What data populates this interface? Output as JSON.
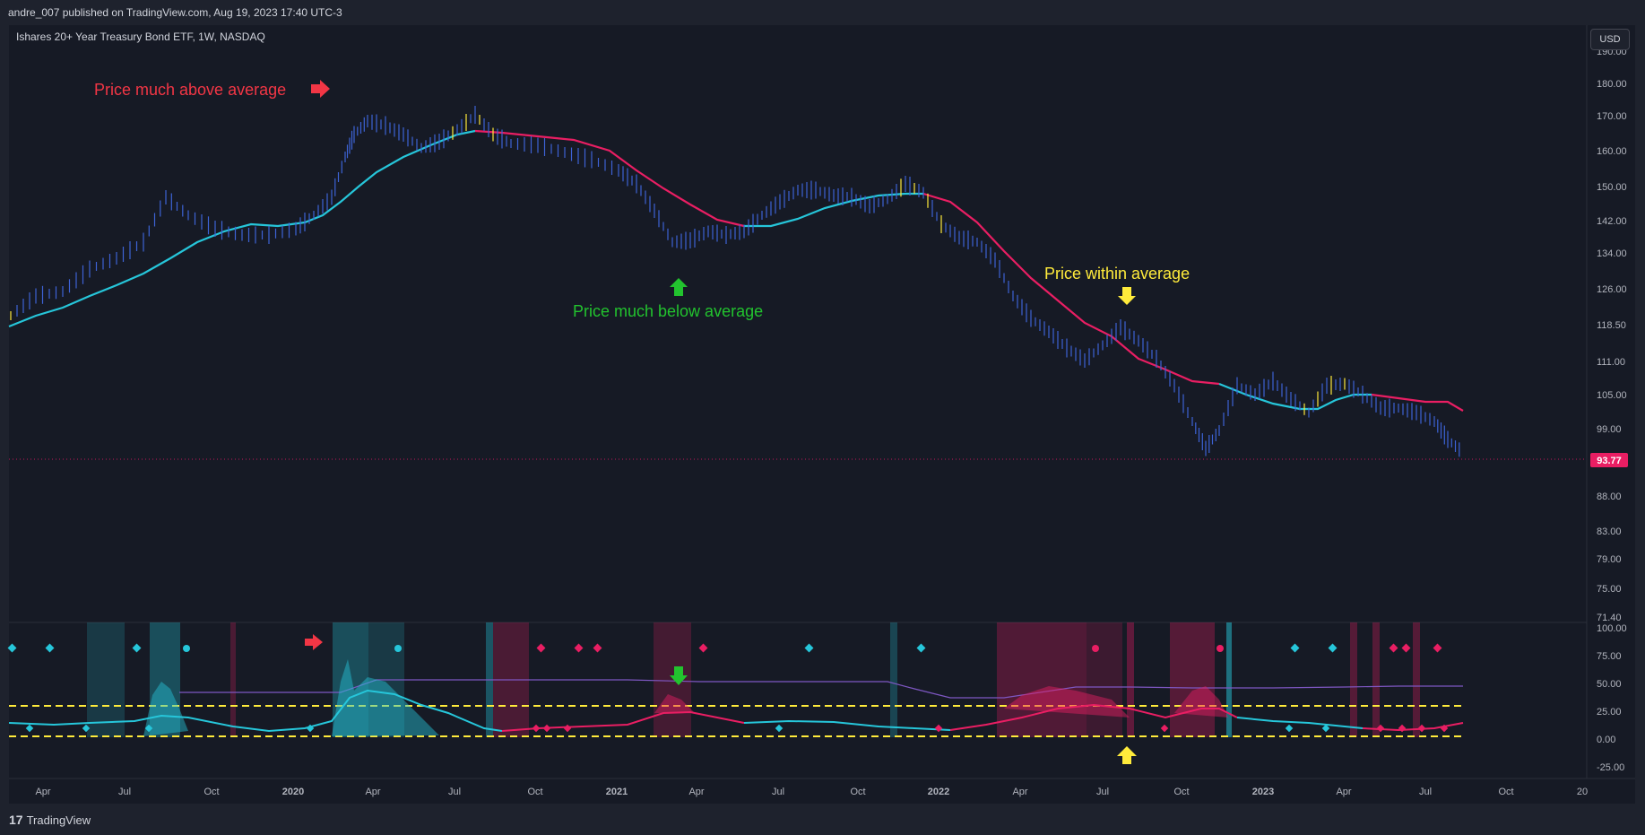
{
  "header": {
    "published": "andre_007 published on TradingView.com, Aug 19, 2023 17:40 UTC-3"
  },
  "symbol": {
    "title": "Ishares 20+ Year Treasury Bond ETF, 1W, NASDAQ",
    "currency_button": "USD",
    "last_price": "93.77"
  },
  "price_axis": {
    "ticks": [
      "190.00",
      "180.00",
      "170.00",
      "160.00",
      "150.00",
      "142.00",
      "134.00",
      "126.00",
      "118.50",
      "111.00",
      "105.00",
      "99.00",
      "93.77",
      "88.00",
      "83.00",
      "79.00",
      "75.00",
      "71.40"
    ]
  },
  "oscillator_axis": {
    "ticks": [
      "100.00",
      "75.00",
      "50.00",
      "25.00",
      "0.00",
      "-25.00"
    ]
  },
  "time_axis": {
    "ticks": [
      "Apr",
      "Jul",
      "Oct",
      "2020",
      "Apr",
      "Jul",
      "Oct",
      "2021",
      "Apr",
      "Jul",
      "Oct",
      "2022",
      "Apr",
      "Jul",
      "Oct",
      "2023",
      "Apr",
      "Jul",
      "Oct",
      "20"
    ]
  },
  "annotations": {
    "above": "Price much above average",
    "below": "Price much below average",
    "within": "Price within average"
  },
  "colors": {
    "above": "#f23645",
    "below": "#22c32e",
    "within": "#ffeb3b",
    "ma_up": "#26c6da",
    "ma_down": "#e91e63",
    "bars": "#3d63d6",
    "background": "#161a25"
  },
  "footer": {
    "brand": "TradingView",
    "mark": "17"
  }
}
